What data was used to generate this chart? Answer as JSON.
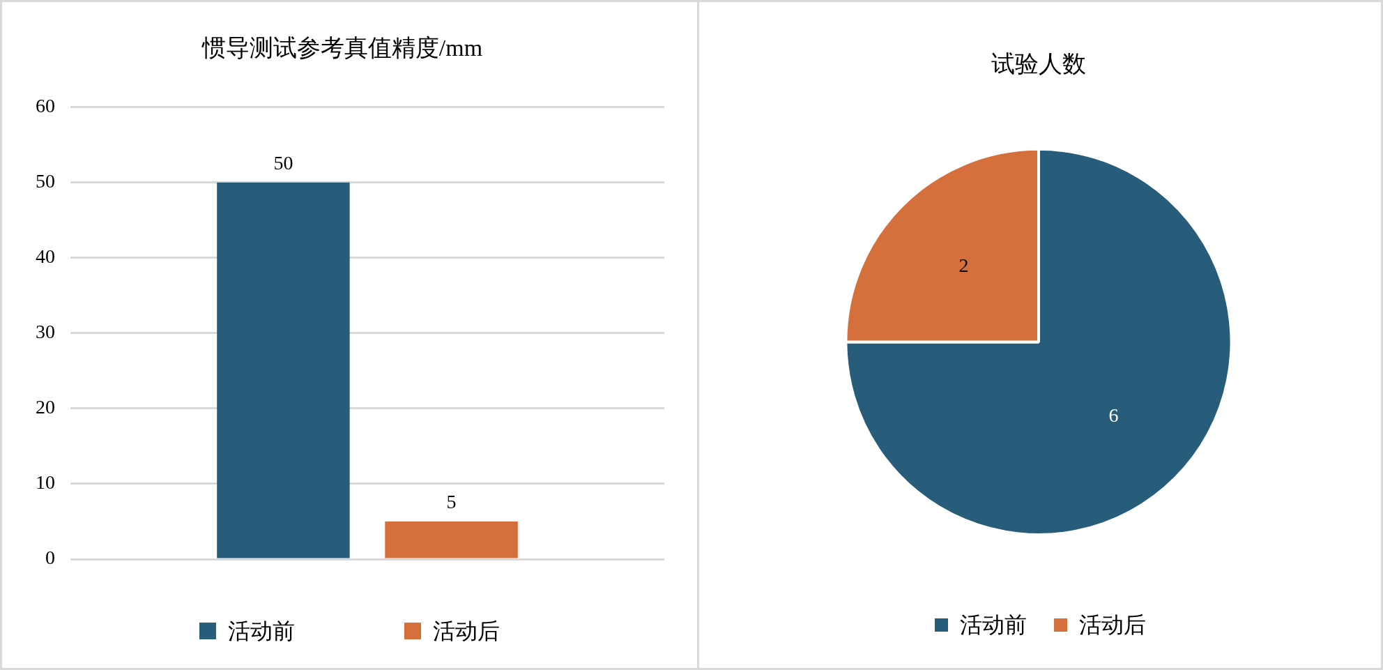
{
  "chart_data": [
    {
      "type": "bar",
      "title": "惯导测试参考真值精度/mm",
      "categories": [
        null
      ],
      "series": [
        {
          "name": "活动前",
          "color": "#275d7b",
          "values": [
            50
          ]
        },
        {
          "name": "活动后",
          "color": "#d56f3c",
          "values": [
            5
          ]
        }
      ],
      "ylim": [
        0,
        60
      ],
      "yticks": [
        0,
        10,
        20,
        30,
        40,
        50,
        60
      ],
      "grid": "y",
      "legend": "bottom",
      "data_labels": true,
      "tick_labels": "y"
    },
    {
      "type": "pie",
      "title": "试验人数",
      "categories": [
        "活动前",
        "活动后"
      ],
      "values": [
        6,
        2
      ],
      "colors": [
        "#275d7b",
        "#d56f3c"
      ],
      "legend": "bottom",
      "data_labels": true
    }
  ]
}
